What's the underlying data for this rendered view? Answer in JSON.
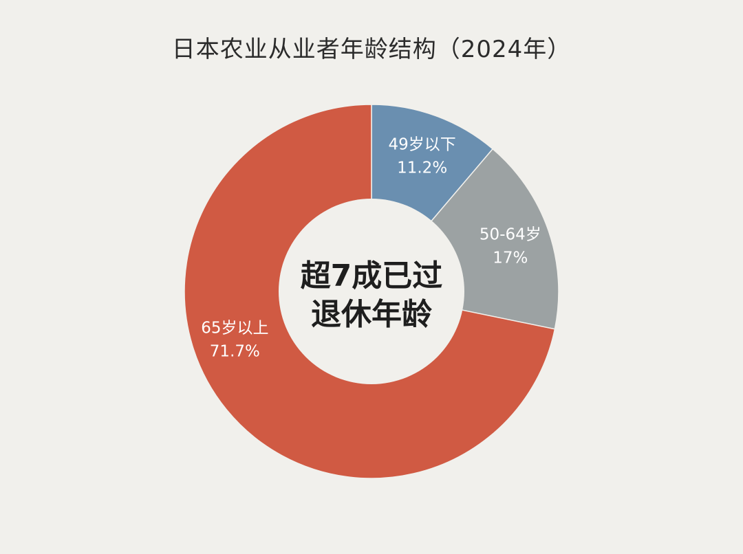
{
  "chart_data": {
    "type": "pie",
    "title": "日本农业从业者年龄结构（2024年）",
    "center_text": [
      "超7成已过",
      "退休年龄"
    ],
    "slices": [
      {
        "label": "49岁以下",
        "value": 11.2,
        "value_label": "11.2%",
        "color": "#6a8fb0"
      },
      {
        "label": "50-64岁",
        "value": 17,
        "value_label": "17%",
        "color": "#9ca2a3"
      },
      {
        "label": "65岁以上",
        "value": 71.7,
        "value_label": "71.7%",
        "color": "#d05a43"
      }
    ],
    "legend": "none",
    "start": "top",
    "direction": "clockwise"
  }
}
